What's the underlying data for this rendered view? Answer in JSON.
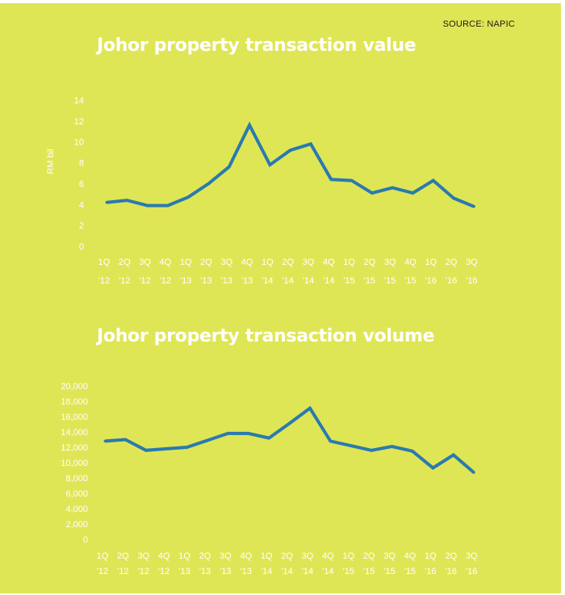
{
  "source": "SOURCE: NAPIC",
  "colors": {
    "background": "#dfe655",
    "line": "#2a7ab0",
    "text": "#ffffff"
  },
  "chart_data": [
    {
      "type": "line",
      "title": "Johor property transaction value",
      "ylabel": "RM bil",
      "xlabel": "",
      "ylim": [
        0,
        14
      ],
      "yticks": [
        "0",
        "2",
        "4",
        "6",
        "8",
        "10",
        "12",
        "14"
      ],
      "categories": [
        "1Q '12",
        "2Q '12",
        "3Q '12",
        "4Q '12",
        "1Q '13",
        "2Q '13",
        "3Q '13",
        "4Q '13",
        "1Q '14",
        "2Q '14",
        "3Q '14",
        "4Q '14",
        "1Q '15",
        "2Q '15",
        "3Q '15",
        "4Q '15",
        "1Q '16",
        "2Q '16",
        "3Q '16"
      ],
      "series": [
        {
          "values": [
            4.2,
            4.4,
            3.9,
            3.9,
            4.7,
            6.0,
            7.6,
            11.6,
            7.8,
            9.2,
            9.8,
            6.4,
            6.3,
            5.1,
            5.6,
            5.1,
            6.3,
            4.6,
            3.8
          ]
        }
      ],
      "grid": false
    },
    {
      "type": "line",
      "title": "Johor property transaction volume",
      "ylabel": "",
      "xlabel": "",
      "ylim": [
        0,
        20000
      ],
      "yticks": [
        "0",
        "2,000",
        "4,000",
        "6,000",
        "8,000",
        "10,000",
        "12,000",
        "14,000",
        "16,000",
        "18,000",
        "20,000"
      ],
      "categories": [
        "1Q '12",
        "2Q '12",
        "3Q '12",
        "4Q '12",
        "1Q '13",
        "2Q '13",
        "3Q '13",
        "4Q '13",
        "1Q '14",
        "2Q '14",
        "3Q '14",
        "4Q '14",
        "1Q '15",
        "2Q '15",
        "3Q '15",
        "4Q '15",
        "1Q '16",
        "2Q '16",
        "3Q '16"
      ],
      "series": [
        {
          "values": [
            12800,
            13000,
            11600,
            11800,
            12000,
            12900,
            13800,
            13800,
            13200,
            15100,
            17100,
            12800,
            12200,
            11600,
            12100,
            11500,
            9300,
            11000,
            8700
          ]
        }
      ],
      "grid": false
    }
  ]
}
